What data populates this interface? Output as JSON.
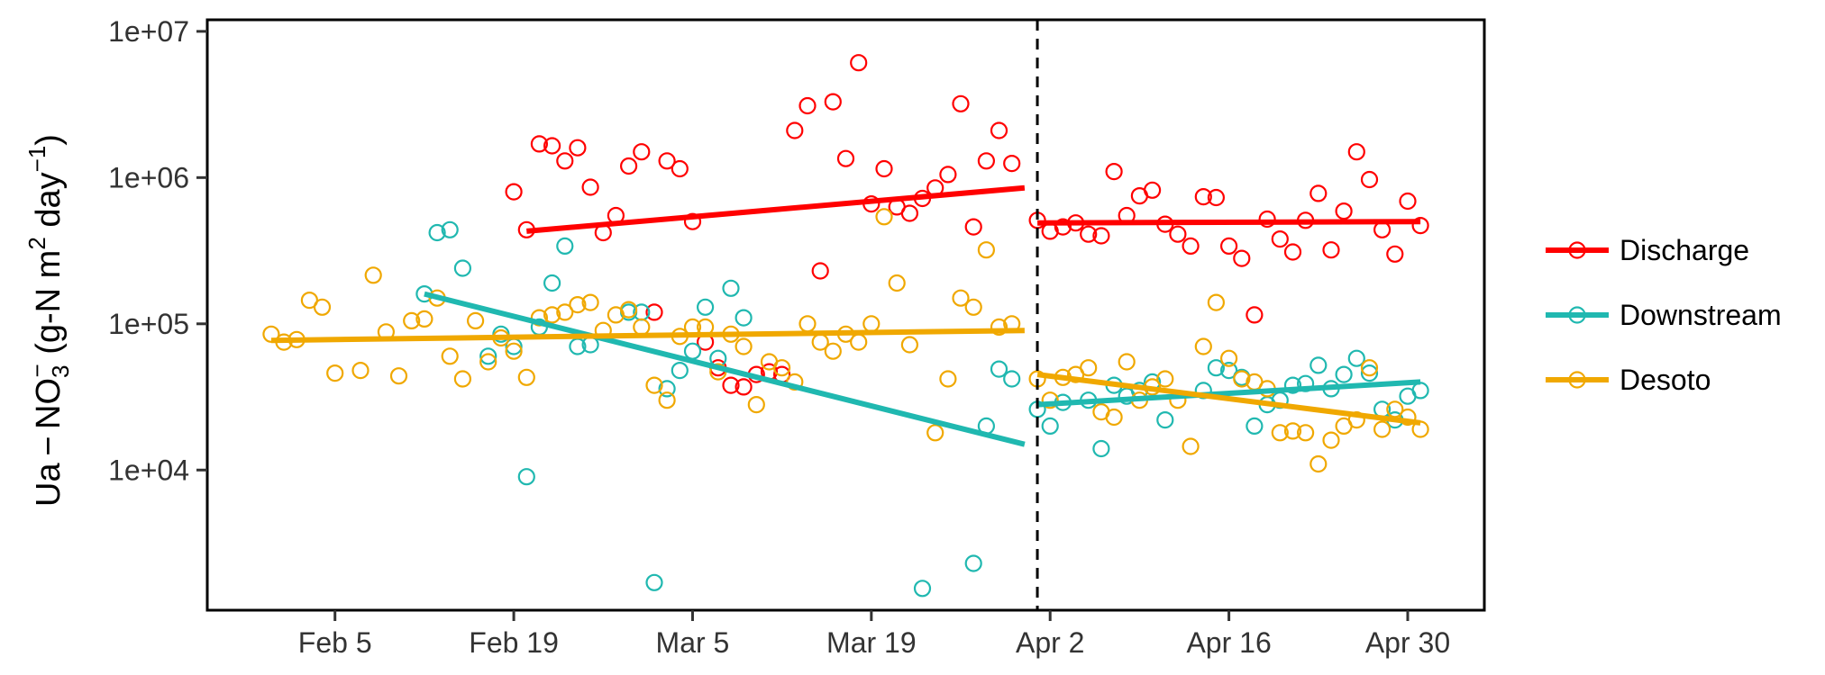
{
  "chart_data": {
    "type": "scatter",
    "title": "",
    "xlabel": "",
    "ylabel": {
      "base": "Ua − NO",
      "sub3": "3",
      "sup_minus": "−",
      "unit_open": "  (g-N  m",
      "sup2": "2",
      "unit_mid": " day",
      "sup_exp": "−1",
      "unit_close": ")"
    },
    "y_scale": "log10",
    "ylim": [
      "2021-01-26",
      0
    ],
    "y_range": [
      1100,
      12000000
    ],
    "x_range": [
      "2021-01-26",
      "2021-05-06"
    ],
    "x_ticks": [
      {
        "date": "2021-02-05",
        "label": "Feb  5"
      },
      {
        "date": "2021-02-19",
        "label": "Feb 19"
      },
      {
        "date": "2021-03-05",
        "label": "Mar  5"
      },
      {
        "date": "2021-03-19",
        "label": "Mar 19"
      },
      {
        "date": "2021-04-02",
        "label": "Apr  2"
      },
      {
        "date": "2021-04-16",
        "label": "Apr 16"
      },
      {
        "date": "2021-04-30",
        "label": "Apr 30"
      }
    ],
    "y_ticks": [
      {
        "value": 10000,
        "label": "1e+04"
      },
      {
        "value": 100000,
        "label": "1e+05"
      },
      {
        "value": 1000000,
        "label": "1e+06"
      },
      {
        "value": 10000000,
        "label": "1e+07"
      }
    ],
    "vline": {
      "date": "2021-04-01",
      "style": "dashed"
    },
    "grid": false,
    "legend_position": "right",
    "series": [
      {
        "name": "Discharge",
        "color": "#ff0000",
        "points": [
          [
            "2021-02-19",
            800000
          ],
          [
            "2021-02-20",
            440000
          ],
          [
            "2021-02-21",
            1700000
          ],
          [
            "2021-02-22",
            1650000
          ],
          [
            "2021-02-23",
            1300000
          ],
          [
            "2021-02-24",
            1600000
          ],
          [
            "2021-02-25",
            860000
          ],
          [
            "2021-02-26",
            420000
          ],
          [
            "2021-02-27",
            550000
          ],
          [
            "2021-02-28",
            1200000
          ],
          [
            "2021-03-01",
            1500000
          ],
          [
            "2021-03-02",
            120000
          ],
          [
            "2021-03-03",
            1300000
          ],
          [
            "2021-03-04",
            1150000
          ],
          [
            "2021-03-05",
            500000
          ],
          [
            "2021-03-06",
            75000
          ],
          [
            "2021-03-07",
            50000
          ],
          [
            "2021-03-08",
            38000
          ],
          [
            "2021-03-09",
            37000
          ],
          [
            "2021-03-10",
            45000
          ],
          [
            "2021-03-11",
            47000
          ],
          [
            "2021-03-12",
            45000
          ],
          [
            "2021-03-13",
            2100000
          ],
          [
            "2021-03-14",
            3100000
          ],
          [
            "2021-03-15",
            230000
          ],
          [
            "2021-03-16",
            3300000
          ],
          [
            "2021-03-17",
            1350000
          ],
          [
            "2021-03-18",
            6100000
          ],
          [
            "2021-03-19",
            660000
          ],
          [
            "2021-03-20",
            1150000
          ],
          [
            "2021-03-21",
            630000
          ],
          [
            "2021-03-22",
            570000
          ],
          [
            "2021-03-23",
            720000
          ],
          [
            "2021-03-24",
            850000
          ],
          [
            "2021-03-25",
            1050000
          ],
          [
            "2021-03-26",
            3200000
          ],
          [
            "2021-03-27",
            460000
          ],
          [
            "2021-03-28",
            1300000
          ],
          [
            "2021-03-29",
            2100000
          ],
          [
            "2021-03-30",
            1250000
          ],
          [
            "2021-04-01",
            510000
          ],
          [
            "2021-04-02",
            430000
          ],
          [
            "2021-04-03",
            460000
          ],
          [
            "2021-04-04",
            490000
          ],
          [
            "2021-04-05",
            410000
          ],
          [
            "2021-04-06",
            400000
          ],
          [
            "2021-04-07",
            1100000
          ],
          [
            "2021-04-08",
            550000
          ],
          [
            "2021-04-09",
            750000
          ],
          [
            "2021-04-10",
            820000
          ],
          [
            "2021-04-11",
            480000
          ],
          [
            "2021-04-12",
            410000
          ],
          [
            "2021-04-13",
            340000
          ],
          [
            "2021-04-14",
            740000
          ],
          [
            "2021-04-15",
            730000
          ],
          [
            "2021-04-16",
            340000
          ],
          [
            "2021-04-17",
            280000
          ],
          [
            "2021-04-18",
            115000
          ],
          [
            "2021-04-19",
            520000
          ],
          [
            "2021-04-20",
            380000
          ],
          [
            "2021-04-21",
            310000
          ],
          [
            "2021-04-22",
            510000
          ],
          [
            "2021-04-23",
            780000
          ],
          [
            "2021-04-24",
            320000
          ],
          [
            "2021-04-25",
            590000
          ],
          [
            "2021-04-26",
            1500000
          ],
          [
            "2021-04-27",
            970000
          ],
          [
            "2021-04-28",
            440000
          ],
          [
            "2021-04-29",
            300000
          ],
          [
            "2021-04-30",
            690000
          ],
          [
            "2021-05-01",
            470000
          ]
        ],
        "trends": [
          {
            "start": [
              "2021-02-20",
              430000
            ],
            "end": [
              "2021-03-31",
              850000
            ]
          },
          {
            "start": [
              "2021-04-01",
              490000
            ],
            "end": [
              "2021-05-01",
              500000
            ]
          }
        ]
      },
      {
        "name": "Downstream",
        "color": "#20b8b0",
        "points": [
          [
            "2021-02-12",
            160000
          ],
          [
            "2021-02-13",
            420000
          ],
          [
            "2021-02-14",
            440000
          ],
          [
            "2021-02-15",
            240000
          ],
          [
            "2021-02-17",
            60000
          ],
          [
            "2021-02-18",
            85000
          ],
          [
            "2021-02-19",
            70000
          ],
          [
            "2021-02-20",
            9000
          ],
          [
            "2021-02-21",
            95000
          ],
          [
            "2021-02-22",
            190000
          ],
          [
            "2021-02-23",
            340000
          ],
          [
            "2021-02-24",
            70000
          ],
          [
            "2021-02-25",
            72000
          ],
          [
            "2021-02-28",
            120000
          ],
          [
            "2021-03-01",
            120000
          ],
          [
            "2021-03-02",
            1700
          ],
          [
            "2021-03-03",
            36000
          ],
          [
            "2021-03-04",
            48000
          ],
          [
            "2021-03-05",
            65000
          ],
          [
            "2021-03-06",
            130000
          ],
          [
            "2021-03-07",
            58000
          ],
          [
            "2021-03-08",
            175000
          ],
          [
            "2021-03-09",
            110000
          ],
          [
            "2021-03-23",
            1550
          ],
          [
            "2021-03-27",
            2300
          ],
          [
            "2021-03-28",
            20000
          ],
          [
            "2021-03-29",
            49000
          ],
          [
            "2021-03-30",
            42000
          ],
          [
            "2021-04-01",
            26000
          ],
          [
            "2021-04-02",
            20000
          ],
          [
            "2021-04-03",
            29000
          ],
          [
            "2021-04-05",
            30000
          ],
          [
            "2021-04-06",
            14000
          ],
          [
            "2021-04-07",
            38000
          ],
          [
            "2021-04-08",
            32000
          ],
          [
            "2021-04-09",
            35000
          ],
          [
            "2021-04-10",
            40000
          ],
          [
            "2021-04-11",
            22000
          ],
          [
            "2021-04-14",
            35000
          ],
          [
            "2021-04-15",
            50000
          ],
          [
            "2021-04-16",
            48000
          ],
          [
            "2021-04-17",
            43000
          ],
          [
            "2021-04-18",
            20000
          ],
          [
            "2021-04-19",
            28000
          ],
          [
            "2021-04-20",
            30000
          ],
          [
            "2021-04-21",
            38000
          ],
          [
            "2021-04-22",
            39000
          ],
          [
            "2021-04-23",
            52000
          ],
          [
            "2021-04-24",
            36000
          ],
          [
            "2021-04-25",
            45000
          ],
          [
            "2021-04-26",
            58000
          ],
          [
            "2021-04-27",
            46000
          ],
          [
            "2021-04-28",
            26000
          ],
          [
            "2021-04-29",
            22000
          ],
          [
            "2021-04-30",
            32000
          ],
          [
            "2021-05-01",
            35000
          ]
        ],
        "trends": [
          {
            "start": [
              "2021-02-12",
              160000
            ],
            "end": [
              "2021-03-31",
              15000
            ]
          },
          {
            "start": [
              "2021-04-01",
              28000
            ],
            "end": [
              "2021-05-01",
              40000
            ]
          }
        ]
      },
      {
        "name": "Desoto",
        "color": "#f0a800",
        "points": [
          [
            "2021-01-31",
            85000
          ],
          [
            "2021-02-01",
            75000
          ],
          [
            "2021-02-02",
            78000
          ],
          [
            "2021-02-03",
            145000
          ],
          [
            "2021-02-04",
            130000
          ],
          [
            "2021-02-05",
            46000
          ],
          [
            "2021-02-07",
            48000
          ],
          [
            "2021-02-08",
            215000
          ],
          [
            "2021-02-09",
            88000
          ],
          [
            "2021-02-10",
            44000
          ],
          [
            "2021-02-11",
            105000
          ],
          [
            "2021-02-12",
            108000
          ],
          [
            "2021-02-13",
            150000
          ],
          [
            "2021-02-14",
            60000
          ],
          [
            "2021-02-15",
            42000
          ],
          [
            "2021-02-16",
            105000
          ],
          [
            "2021-02-17",
            55000
          ],
          [
            "2021-02-18",
            80000
          ],
          [
            "2021-02-19",
            65000
          ],
          [
            "2021-02-20",
            43000
          ],
          [
            "2021-02-21",
            110000
          ],
          [
            "2021-02-22",
            115000
          ],
          [
            "2021-02-23",
            120000
          ],
          [
            "2021-02-24",
            135000
          ],
          [
            "2021-02-25",
            140000
          ],
          [
            "2021-02-26",
            90000
          ],
          [
            "2021-02-27",
            115000
          ],
          [
            "2021-02-28",
            125000
          ],
          [
            "2021-03-01",
            95000
          ],
          [
            "2021-03-02",
            38000
          ],
          [
            "2021-03-03",
            30000
          ],
          [
            "2021-03-04",
            82000
          ],
          [
            "2021-03-05",
            95000
          ],
          [
            "2021-03-06",
            95000
          ],
          [
            "2021-03-07",
            47000
          ],
          [
            "2021-03-08",
            85000
          ],
          [
            "2021-03-09",
            70000
          ],
          [
            "2021-03-10",
            28000
          ],
          [
            "2021-03-11",
            55000
          ],
          [
            "2021-03-12",
            50000
          ],
          [
            "2021-03-13",
            40000
          ],
          [
            "2021-03-14",
            100000
          ],
          [
            "2021-03-15",
            75000
          ],
          [
            "2021-03-16",
            65000
          ],
          [
            "2021-03-17",
            85000
          ],
          [
            "2021-03-18",
            75000
          ],
          [
            "2021-03-19",
            100000
          ],
          [
            "2021-03-20",
            540000
          ],
          [
            "2021-03-21",
            190000
          ],
          [
            "2021-03-22",
            72000
          ],
          [
            "2021-03-24",
            18000
          ],
          [
            "2021-03-25",
            42000
          ],
          [
            "2021-03-26",
            150000
          ],
          [
            "2021-03-27",
            130000
          ],
          [
            "2021-03-28",
            320000
          ],
          [
            "2021-03-29",
            95000
          ],
          [
            "2021-03-30",
            100000
          ],
          [
            "2021-04-01",
            42000
          ],
          [
            "2021-04-02",
            30000
          ],
          [
            "2021-04-03",
            43000
          ],
          [
            "2021-04-04",
            45000
          ],
          [
            "2021-04-05",
            50000
          ],
          [
            "2021-04-06",
            25000
          ],
          [
            "2021-04-07",
            23000
          ],
          [
            "2021-04-08",
            55000
          ],
          [
            "2021-04-09",
            30000
          ],
          [
            "2021-04-10",
            37000
          ],
          [
            "2021-04-11",
            42000
          ],
          [
            "2021-04-12",
            30000
          ],
          [
            "2021-04-13",
            14500
          ],
          [
            "2021-04-14",
            70000
          ],
          [
            "2021-04-15",
            140000
          ],
          [
            "2021-04-16",
            58000
          ],
          [
            "2021-04-17",
            42000
          ],
          [
            "2021-04-18",
            40000
          ],
          [
            "2021-04-19",
            36000
          ],
          [
            "2021-04-20",
            18000
          ],
          [
            "2021-04-21",
            18500
          ],
          [
            "2021-04-22",
            18000
          ],
          [
            "2021-04-23",
            11000
          ],
          [
            "2021-04-24",
            16000
          ],
          [
            "2021-04-25",
            20000
          ],
          [
            "2021-04-26",
            22000
          ],
          [
            "2021-04-27",
            50000
          ],
          [
            "2021-04-28",
            19000
          ],
          [
            "2021-04-29",
            26000
          ],
          [
            "2021-04-30",
            23000
          ],
          [
            "2021-05-01",
            19000
          ]
        ],
        "trends": [
          {
            "start": [
              "2021-01-31",
              77000
            ],
            "end": [
              "2021-03-31",
              90000
            ]
          },
          {
            "start": [
              "2021-04-01",
              45000
            ],
            "end": [
              "2021-05-01",
              21000
            ]
          }
        ]
      }
    ]
  }
}
